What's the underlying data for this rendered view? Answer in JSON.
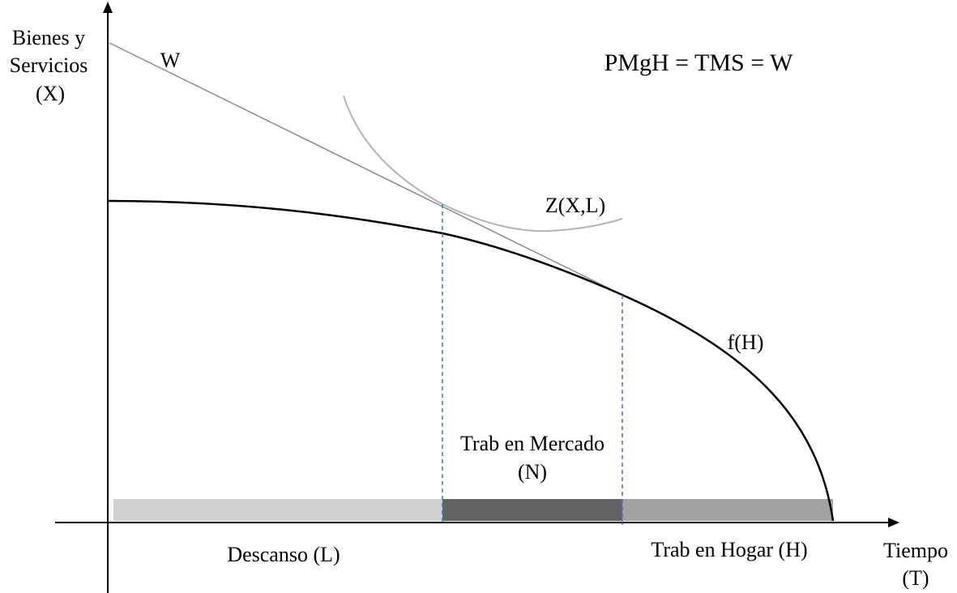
{
  "labels": {
    "y_axis_line1": "Bienes y",
    "y_axis_line2": "Servicios",
    "y_axis_line3": "(X)",
    "x_axis_line1": "Tiempo",
    "x_axis_line2": "(T)",
    "wage_line": "W",
    "equilibrium_condition": "PMgH = TMS = W",
    "indifference_curve": "Z(X,L)",
    "production_function": "f(H)",
    "market_work_line1": "Trab en Mercado",
    "market_work_line2": "(N)",
    "leisure": "Descanso (L)",
    "home_work": "Trab en Hogar (H)"
  },
  "colors": {
    "axis": "#000000",
    "production_curve": "#000000",
    "wage_line": "#8c8c8c",
    "indifference_curve": "#b3b3b3",
    "guide_lines": "#4472c4",
    "leisure_bar": "#d0d0d0",
    "market_work_bar": "#636363",
    "home_work_bar": "#a2a2a2"
  }
}
